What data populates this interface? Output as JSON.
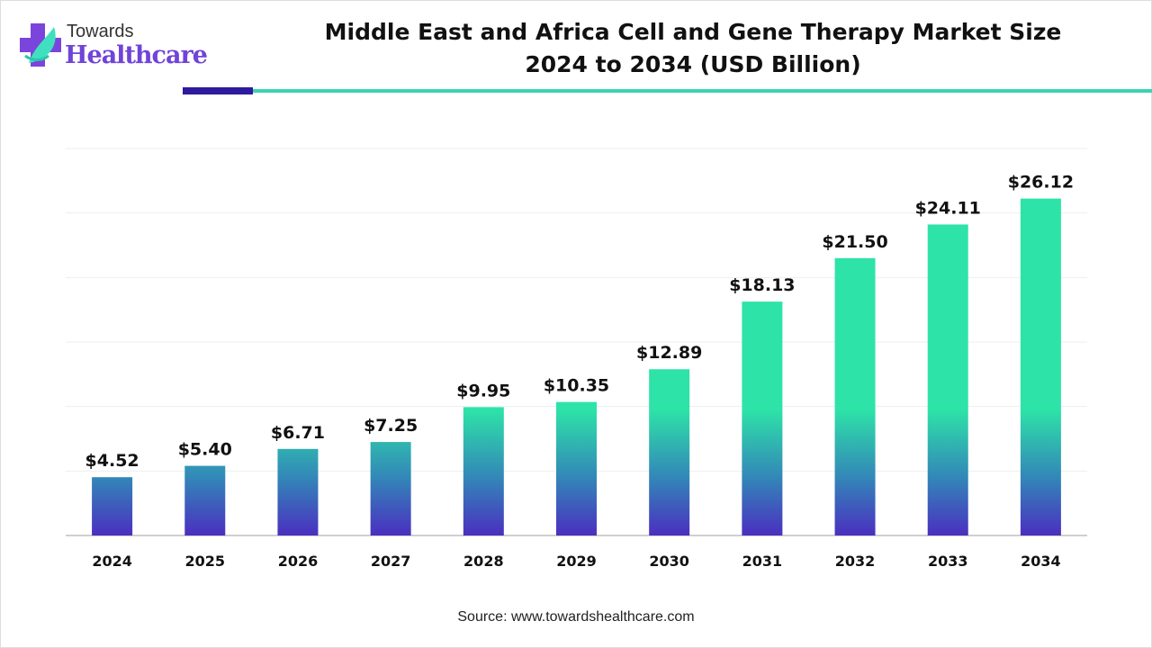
{
  "logo": {
    "line1": "Towards",
    "line2": "Healthcare"
  },
  "source": "Source: www.towardshealthcare.com",
  "colors": {
    "bar_top": "#2ee3a8",
    "bar_bottom": "#4a2fc0",
    "accent_dark": "#2e1a9e",
    "accent_teal": "#3fd1b0"
  },
  "chart_data": {
    "type": "bar",
    "title": "Middle East and Africa Cell and Gene Therapy Market Size 2024 to 2034 (USD Billion)",
    "title_line1": "Middle East and Africa Cell and Gene Therapy Market Size",
    "title_line2": "2024 to 2034 (USD Billion)",
    "categories": [
      "2024",
      "2025",
      "2026",
      "2027",
      "2028",
      "2029",
      "2030",
      "2031",
      "2032",
      "2033",
      "2034"
    ],
    "values": [
      4.52,
      5.4,
      6.71,
      7.25,
      9.95,
      10.35,
      12.89,
      18.13,
      21.5,
      24.11,
      26.12
    ],
    "labels": [
      "$4.52",
      "$5.40",
      "$6.71",
      "$7.25",
      "$9.95",
      "$10.35",
      "$12.89",
      "$18.13",
      "$21.50",
      "$24.11",
      "$26.12"
    ],
    "xlabel": "",
    "ylabel": "",
    "ylim": [
      0,
      30
    ],
    "grid": true,
    "grid_step": 5
  }
}
